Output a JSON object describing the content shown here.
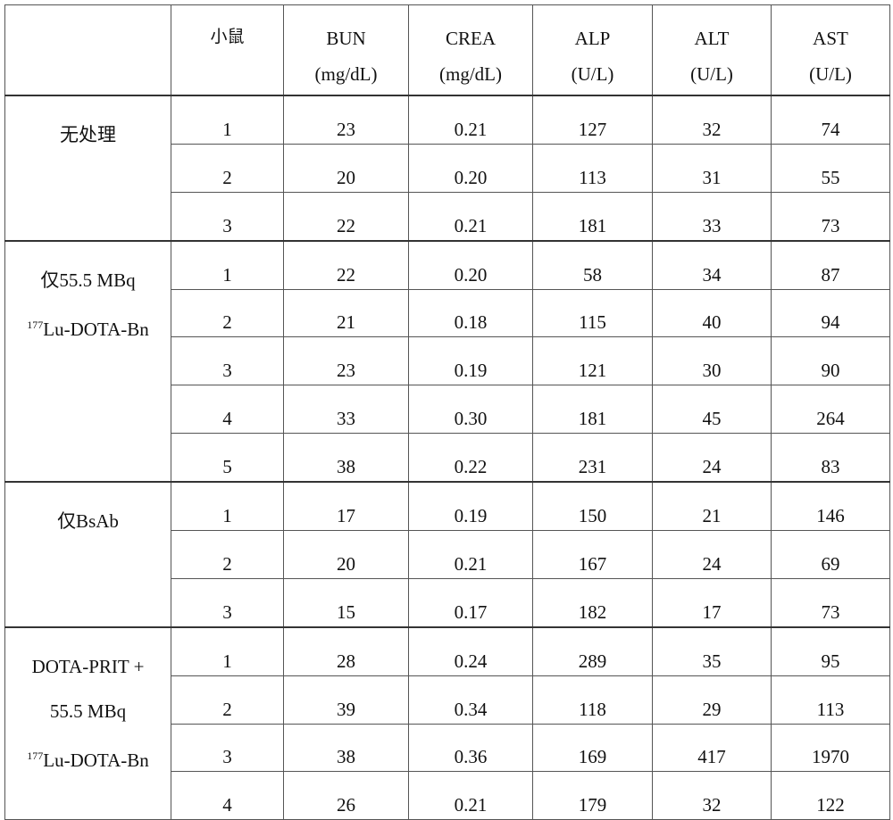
{
  "headers": {
    "mouse": "小鼠",
    "cols": [
      {
        "name": "BUN",
        "unit": "(mg/dL)"
      },
      {
        "name": "CREA",
        "unit": "(mg/dL)"
      },
      {
        "name": "ALP",
        "unit": "(U/L)"
      },
      {
        "name": "ALT",
        "unit": "(U/L)"
      },
      {
        "name": "AST",
        "unit": "(U/L)"
      }
    ]
  },
  "groups": [
    {
      "label_lines": [
        "无处理"
      ],
      "rows": [
        [
          "1",
          "23",
          "0.21",
          "127",
          "32",
          "74"
        ],
        [
          "2",
          "20",
          "0.20",
          "113",
          "31",
          "55"
        ],
        [
          "3",
          "22",
          "0.21",
          "181",
          "33",
          "73"
        ]
      ]
    },
    {
      "label_lines": [
        "仅55.5 MBq",
        "177|Lu-DOTA-Bn"
      ],
      "rows": [
        [
          "1",
          "22",
          "0.20",
          "58",
          "34",
          "87"
        ],
        [
          "2",
          "21",
          "0.18",
          "115",
          "40",
          "94"
        ],
        [
          "3",
          "23",
          "0.19",
          "121",
          "30",
          "90"
        ],
        [
          "4",
          "33",
          "0.30",
          "181",
          "45",
          "264"
        ],
        [
          "5",
          "38",
          "0.22",
          "231",
          "24",
          "83"
        ]
      ]
    },
    {
      "label_lines": [
        "仅BsAb"
      ],
      "rows": [
        [
          "1",
          "17",
          "0.19",
          "150",
          "21",
          "146"
        ],
        [
          "2",
          "20",
          "0.21",
          "167",
          "24",
          "69"
        ],
        [
          "3",
          "15",
          "0.17",
          "182",
          "17",
          "73"
        ]
      ]
    },
    {
      "label_lines": [
        "DOTA-PRIT +",
        "55.5 MBq",
        "177|Lu-DOTA-Bn"
      ],
      "rows": [
        [
          "1",
          "28",
          "0.24",
          "289",
          "35",
          "95"
        ],
        [
          "2",
          "39",
          "0.34",
          "118",
          "29",
          "113"
        ],
        [
          "3",
          "38",
          "0.36",
          "169",
          "417",
          "1970"
        ],
        [
          "4",
          "26",
          "0.21",
          "179",
          "32",
          "122"
        ]
      ]
    }
  ]
}
